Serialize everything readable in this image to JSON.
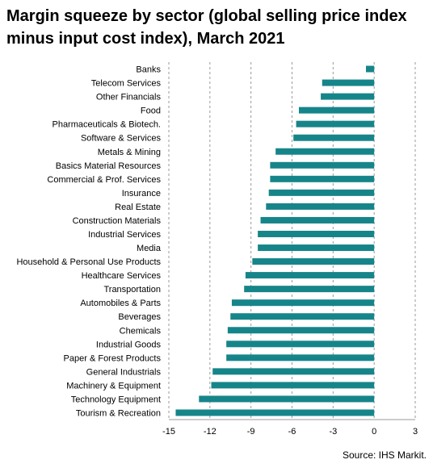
{
  "title": "Margin squeeze by sector (global selling price index minus input cost index), March 2021",
  "source": "Source: IHS Markit.",
  "chart_data": {
    "type": "bar",
    "orientation": "horizontal",
    "title": "Margin squeeze by sector (global selling price index minus input cost index), March 2021",
    "xlabel": "",
    "ylabel": "",
    "xlim": [
      -15,
      3
    ],
    "xticks": [
      -15,
      -12,
      -9,
      -6,
      -3,
      0,
      3
    ],
    "grid": "vertical dashed",
    "bar_color": "#16858a",
    "categories": [
      "Banks",
      "Telecom Services",
      "Other Financials",
      "Food",
      "Pharmaceuticals & Biotech.",
      "Software & Services",
      "Metals & Mining",
      "Basics Material Resources",
      "Commercial & Prof. Services",
      "Insurance",
      "Real Estate",
      "Construction Materials",
      "Industrial Services",
      "Media",
      "Household & Personal Use Products",
      "Healthcare Services",
      "Transportation",
      "Automobiles & Parts",
      "Beverages",
      "Chemicals",
      "Industrial Goods",
      "Paper & Forest Products",
      "General Industrials",
      "Machinery & Equipment",
      "Technology Equipment",
      "Tourism & Recreation"
    ],
    "values": [
      -0.6,
      -3.8,
      -3.9,
      -5.5,
      -5.7,
      -5.9,
      -7.2,
      -7.6,
      -7.6,
      -7.7,
      -7.9,
      -8.3,
      -8.5,
      -8.5,
      -8.9,
      -9.4,
      -9.5,
      -10.4,
      -10.5,
      -10.7,
      -10.8,
      -10.8,
      -11.8,
      -11.9,
      -12.8,
      -14.5
    ]
  }
}
